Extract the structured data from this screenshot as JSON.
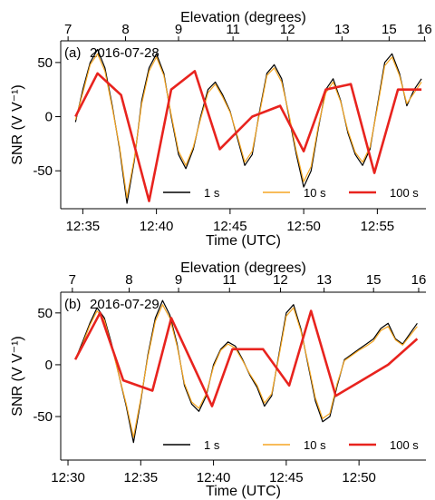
{
  "chart_data": [
    {
      "type": "line",
      "panel_label": "(a)",
      "date": "2016-07-28",
      "xlabel": "Time (UTC)",
      "ylabel": "SNR (V V⁻¹)",
      "top_xlabel": "Elevation (degrees)",
      "x_unit": "minutes since 12:30 UTC",
      "xlim": [
        3.5,
        28.3
      ],
      "ylim": [
        -85,
        70
      ],
      "x_ticks": [
        5,
        10,
        15,
        20,
        25
      ],
      "x_tick_labels": [
        "12:35",
        "12:40",
        "12:45",
        "12:50",
        "12:55"
      ],
      "y_ticks": [
        -50,
        0,
        50
      ],
      "y_tick_labels": [
        "-50",
        "0",
        "50"
      ],
      "top_ticks": [
        4.0,
        7.9,
        11.5,
        15.2,
        18.9,
        22.6,
        25.8,
        28.2
      ],
      "top_tick_labels": [
        "7",
        "8",
        "9",
        "11",
        "12",
        "13",
        "15",
        "16"
      ],
      "legend_position": "bottom-right",
      "grid": false,
      "series": [
        {
          "name": "1 s",
          "color": "#000000",
          "x": [
            4.5,
            5.0,
            5.5,
            6.0,
            6.5,
            7.0,
            7.5,
            8.0,
            8.5,
            9.0,
            9.5,
            10.0,
            10.5,
            11.0,
            11.5,
            12.0,
            12.5,
            13.0,
            13.5,
            14.0,
            14.5,
            15.0,
            15.5,
            16.0,
            16.5,
            17.0,
            17.5,
            18.0,
            18.5,
            19.0,
            19.5,
            20.0,
            20.5,
            21.0,
            21.5,
            22.0,
            22.5,
            23.0,
            23.5,
            24.0,
            24.5,
            25.0,
            25.5,
            26.0,
            26.5,
            27.0,
            27.5,
            28.0
          ],
          "y": [
            -5,
            25,
            50,
            62,
            45,
            10,
            -30,
            -80,
            -40,
            15,
            45,
            58,
            40,
            0,
            -35,
            -48,
            -30,
            0,
            25,
            32,
            20,
            5,
            -20,
            -45,
            -35,
            5,
            40,
            48,
            35,
            0,
            -35,
            -65,
            -50,
            -10,
            25,
            35,
            15,
            -15,
            -35,
            -45,
            -30,
            10,
            50,
            58,
            40,
            10,
            25,
            35
          ]
        },
        {
          "name": "10 s",
          "color": "#f5a623",
          "x": [
            4.5,
            5.0,
            5.5,
            6.0,
            6.5,
            7.0,
            7.5,
            8.0,
            8.5,
            9.0,
            9.5,
            10.0,
            10.5,
            11.0,
            11.5,
            12.0,
            12.5,
            13.0,
            13.5,
            14.0,
            14.5,
            15.0,
            15.5,
            16.0,
            16.5,
            17.0,
            17.5,
            18.0,
            18.5,
            19.0,
            19.5,
            20.0,
            20.5,
            21.0,
            21.5,
            22.0,
            22.5,
            23.0,
            23.5,
            24.0,
            24.5,
            25.0,
            25.5,
            26.0,
            26.5,
            27.0,
            27.5,
            28.0
          ],
          "y": [
            -3,
            22,
            48,
            58,
            42,
            8,
            -28,
            -75,
            -38,
            12,
            42,
            55,
            38,
            2,
            -32,
            -45,
            -28,
            -2,
            22,
            30,
            18,
            4,
            -18,
            -42,
            -32,
            3,
            38,
            45,
            32,
            2,
            -32,
            -60,
            -46,
            -8,
            22,
            32,
            14,
            -13,
            -33,
            -42,
            -28,
            8,
            47,
            55,
            38,
            12,
            22,
            32
          ]
        },
        {
          "name": "100 s",
          "color": "#e8231e",
          "x": [
            4.5,
            6.0,
            7.6,
            9.5,
            11.0,
            12.6,
            14.3,
            16.5,
            18.4,
            20.0,
            21.5,
            23.2,
            24.8,
            26.4,
            28.0
          ],
          "y": [
            0,
            40,
            20,
            -78,
            25,
            42,
            -30,
            0,
            10,
            -32,
            25,
            30,
            -52,
            25,
            25
          ]
        }
      ]
    },
    {
      "type": "line",
      "panel_label": "(b)",
      "date": "2016-07-29",
      "xlabel": "Time (UTC)",
      "ylabel": "SNR (V V⁻¹)",
      "top_xlabel": "Elevation (degrees)",
      "x_unit": "minutes since 12:30 UTC",
      "xlim": [
        -0.5,
        24.6
      ],
      "ylim": [
        -92,
        70
      ],
      "x_ticks": [
        0,
        5,
        10,
        15,
        20
      ],
      "x_tick_labels": [
        "12:30",
        "12:35",
        "12:40",
        "12:45",
        "12:50"
      ],
      "y_ticks": [
        -50,
        0,
        50
      ],
      "y_tick_labels": [
        "-50",
        "0",
        "50"
      ],
      "top_ticks": [
        0.3,
        4.2,
        7.6,
        11.1,
        14.6,
        17.6,
        21.0,
        24.1
      ],
      "top_tick_labels": [
        "7",
        "8",
        "9",
        "11",
        "12",
        "13",
        "15",
        "16"
      ],
      "legend_position": "bottom-right",
      "grid": false,
      "series": [
        {
          "name": "1 s",
          "color": "#000000",
          "x": [
            0.5,
            1.0,
            1.5,
            2.0,
            2.5,
            3.0,
            3.5,
            4.0,
            4.5,
            5.0,
            5.5,
            6.0,
            6.5,
            7.0,
            7.5,
            8.0,
            8.5,
            9.0,
            9.5,
            10.0,
            10.5,
            11.0,
            11.5,
            12.0,
            12.5,
            13.0,
            13.5,
            14.0,
            14.5,
            15.0,
            15.5,
            16.0,
            16.5,
            17.0,
            17.5,
            18.0,
            18.5,
            19.0,
            19.5,
            20.0,
            20.5,
            21.0,
            21.5,
            22.0,
            22.5,
            23.0,
            23.5,
            24.0
          ],
          "y": [
            5,
            22,
            40,
            55,
            45,
            20,
            -10,
            -40,
            -75,
            -35,
            10,
            45,
            62,
            48,
            20,
            -20,
            -38,
            -45,
            -30,
            0,
            15,
            22,
            18,
            5,
            -10,
            -22,
            -40,
            -30,
            10,
            50,
            58,
            35,
            0,
            -35,
            -55,
            -50,
            -20,
            5,
            10,
            15,
            20,
            25,
            35,
            40,
            25,
            20,
            30,
            40
          ]
        },
        {
          "name": "10 s",
          "color": "#f5a623",
          "x": [
            0.5,
            1.0,
            1.5,
            2.0,
            2.5,
            3.0,
            3.5,
            4.0,
            4.5,
            5.0,
            5.5,
            6.0,
            6.5,
            7.0,
            7.5,
            8.0,
            8.5,
            9.0,
            9.5,
            10.0,
            10.5,
            11.0,
            11.5,
            12.0,
            12.5,
            13.0,
            13.5,
            14.0,
            14.5,
            15.0,
            15.5,
            16.0,
            16.5,
            17.0,
            17.5,
            18.0,
            18.5,
            19.0,
            19.5,
            20.0,
            20.5,
            21.0,
            21.5,
            22.0,
            22.5,
            23.0,
            23.5,
            24.0
          ],
          "y": [
            6,
            20,
            38,
            52,
            43,
            18,
            -10,
            -38,
            -70,
            -33,
            8,
            42,
            58,
            45,
            18,
            -18,
            -36,
            -42,
            -28,
            -2,
            14,
            20,
            16,
            4,
            -9,
            -20,
            -37,
            -28,
            8,
            47,
            55,
            33,
            2,
            -32,
            -52,
            -47,
            -18,
            4,
            9,
            14,
            18,
            23,
            33,
            37,
            24,
            19,
            28,
            37
          ]
        },
        {
          "name": "100 s",
          "color": "#e8231e",
          "x": [
            0.5,
            2.2,
            3.8,
            5.8,
            7.1,
            9.9,
            11.3,
            13.4,
            15.2,
            16.7,
            18.4,
            20.2,
            22.0,
            24.0
          ],
          "y": [
            5,
            50,
            -15,
            -25,
            45,
            -40,
            15,
            15,
            -20,
            52,
            -30,
            -15,
            0,
            25
          ]
        }
      ]
    }
  ]
}
